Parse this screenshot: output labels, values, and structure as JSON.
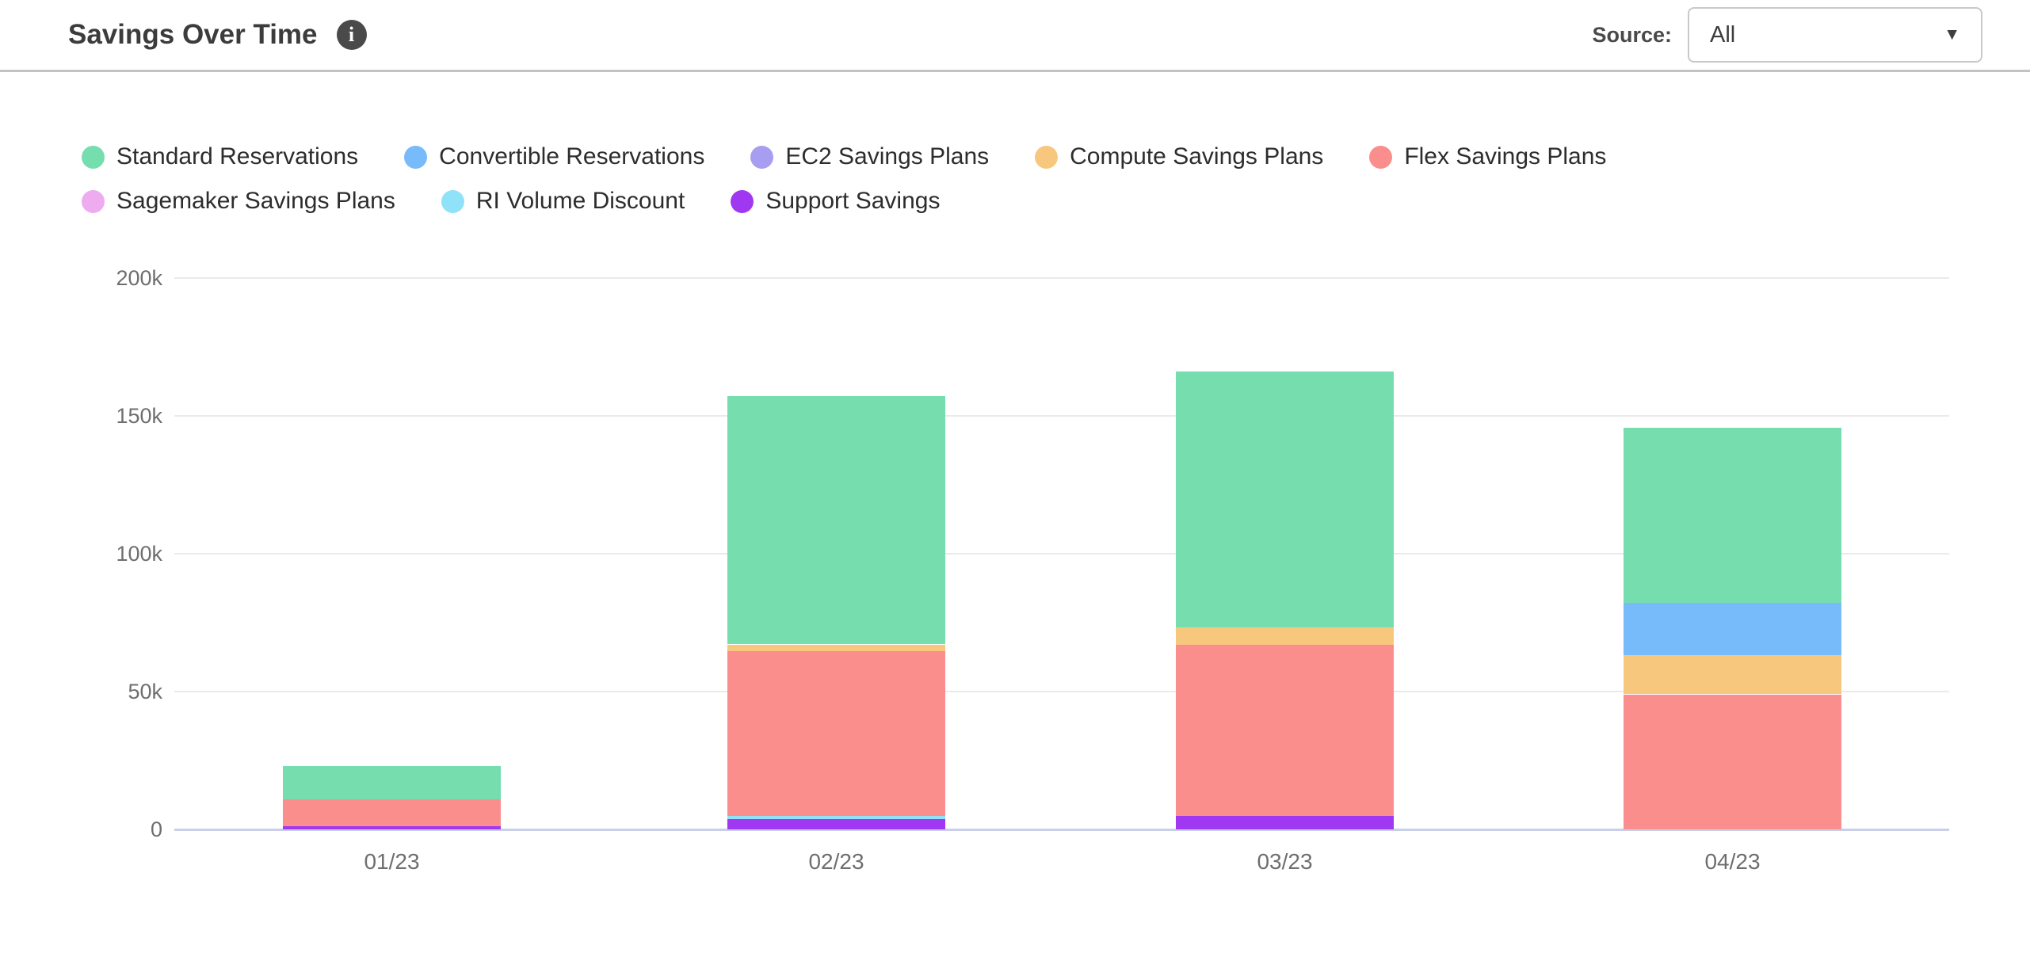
{
  "header": {
    "title": "Savings Over Time",
    "source_label": "Source:",
    "source_value": "All"
  },
  "icons": {
    "info": "i",
    "caret_down": "▼"
  },
  "chart_data": {
    "type": "bar",
    "stacked": true,
    "title": "Savings Over Time",
    "categories": [
      "01/23",
      "02/23",
      "03/23",
      "04/23"
    ],
    "ylabel": "",
    "xlabel": "",
    "ylim_thousands": [
      0,
      200
    ],
    "yticks": [
      {
        "label": "200k",
        "value": 200
      },
      {
        "label": "150k",
        "value": 150
      },
      {
        "label": "100k",
        "value": 100
      },
      {
        "label": "50k",
        "value": 50
      },
      {
        "label": "0",
        "value": 0
      }
    ],
    "grid": "horizontal",
    "legend_position": "top-left",
    "values_note": "values in thousands, read from axis gridlines",
    "series": [
      {
        "name": "Standard Reservations",
        "color": "#75ddae",
        "values": [
          12.1,
          90,
          93,
          63.5
        ]
      },
      {
        "name": "Convertible Reservations",
        "color": "#77bbfa",
        "values": [
          0,
          0,
          0,
          19
        ]
      },
      {
        "name": "EC2 Savings Plans",
        "color": "#a79ef2",
        "values": [
          0,
          0,
          0,
          0
        ]
      },
      {
        "name": "Compute Savings Plans",
        "color": "#f8c77e",
        "values": [
          0,
          2.3,
          6.2,
          14.2
        ]
      },
      {
        "name": "Flex Savings Plans",
        "color": "#fa8e8d",
        "values": [
          9.7,
          60,
          62,
          49
        ]
      },
      {
        "name": "Sagemaker Savings Plans",
        "color": "#eeabf0",
        "values": [
          0,
          0,
          0,
          0
        ]
      },
      {
        "name": "RI Volume Discount",
        "color": "#8fe2f8",
        "values": [
          0,
          1,
          0,
          0
        ]
      },
      {
        "name": "Support Savings",
        "color": "#a038f2",
        "values": [
          1.2,
          3.8,
          5,
          0
        ]
      }
    ],
    "stack_bottom_to_top": [
      "Support Savings",
      "RI Volume Discount",
      "Sagemaker Savings Plans",
      "Flex Savings Plans",
      "Compute Savings Plans",
      "EC2 Savings Plans",
      "Convertible Reservations",
      "Standard Reservations"
    ],
    "totals_thousands": [
      23,
      157.1,
      166.2,
      145.7
    ]
  }
}
